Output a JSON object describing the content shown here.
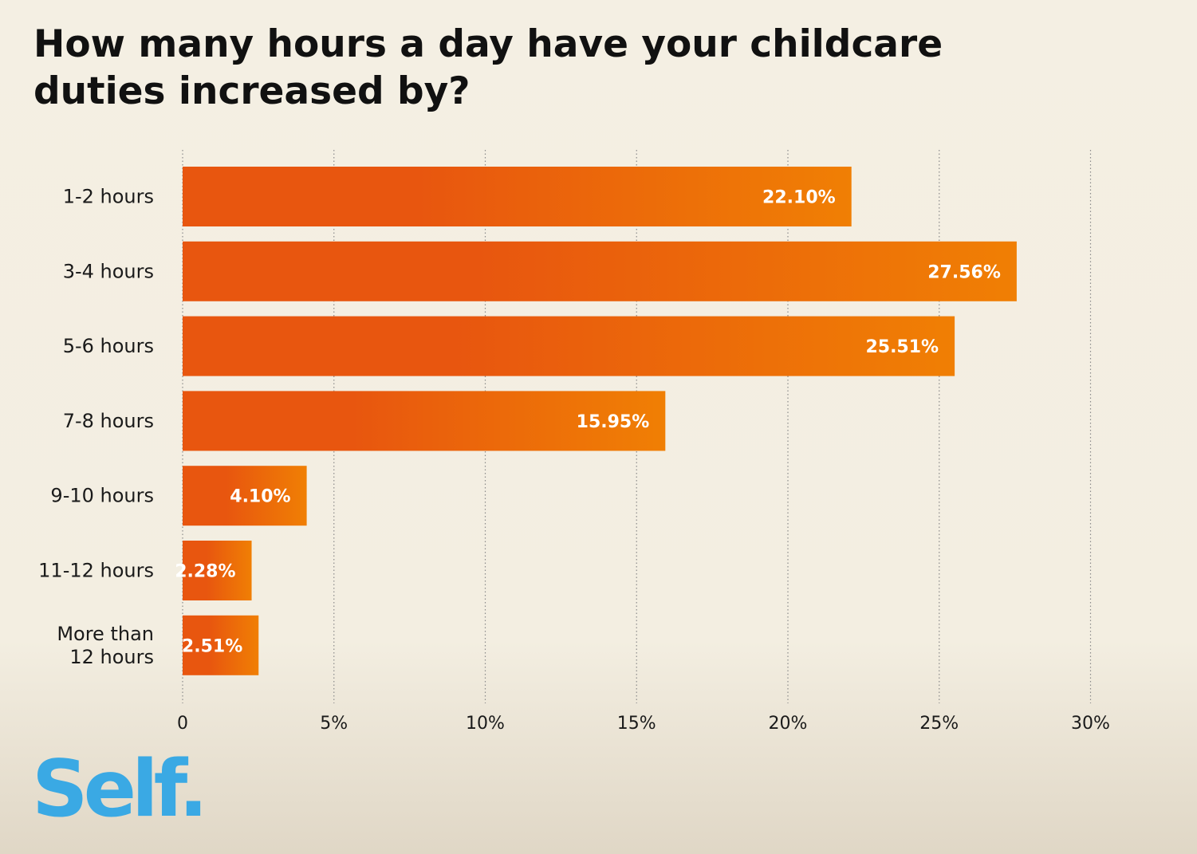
{
  "colors": {
    "bar_start": "#e8560f",
    "bar_end": "#f07f04",
    "brand": "#3aa9e4",
    "grid": "#8a8a8a",
    "text": "#1a1a1a"
  },
  "brand": {
    "name": "Self",
    "dot": "."
  },
  "chart_data": {
    "type": "bar",
    "orientation": "horizontal",
    "title": "How many hours a day have your childcare duties increased by?",
    "xlabel": "",
    "ylabel": "",
    "categories": [
      "1-2 hours",
      "3-4 hours",
      "5-6 hours",
      "7-8 hours",
      "9-10 hours",
      "11-12 hours",
      "More than 12 hours"
    ],
    "category_lines": [
      [
        "1-2 hours"
      ],
      [
        "3-4 hours"
      ],
      [
        "5-6 hours"
      ],
      [
        "7-8 hours"
      ],
      [
        "9-10 hours"
      ],
      [
        "11-12 hours"
      ],
      [
        "More than",
        "12 hours"
      ]
    ],
    "values": [
      22.1,
      27.56,
      25.51,
      15.95,
      4.1,
      2.28,
      2.51
    ],
    "value_labels": [
      "22.10%",
      "27.56%",
      "25.51%",
      "15.95%",
      "4.10%",
      "2.28%",
      "2.51%"
    ],
    "xlim": [
      0,
      30
    ],
    "xticks": [
      0,
      5,
      10,
      15,
      20,
      25,
      30
    ],
    "xtick_labels": [
      "0",
      "5%",
      "10%",
      "15%",
      "20%",
      "25%",
      "30%"
    ],
    "grid": "vertical dotted",
    "legend": "none"
  }
}
